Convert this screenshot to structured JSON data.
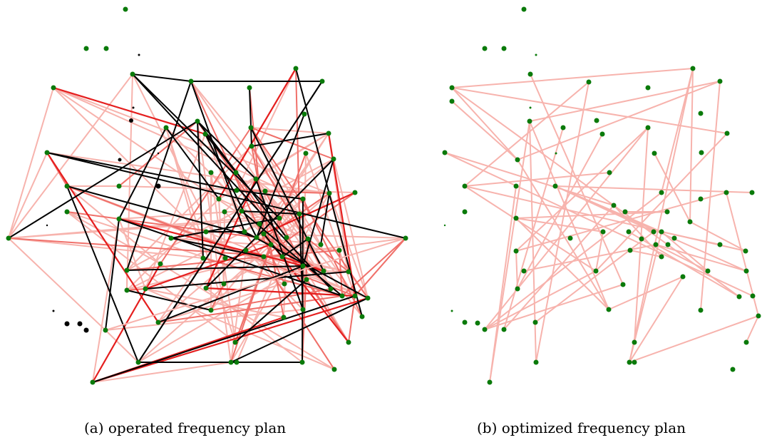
{
  "captions": {
    "left": "(a) operated frequency plan",
    "right": "(b) optimized frequency plan"
  },
  "colors": {
    "node": "#0a7a0a",
    "edge_light": "#f7b3ad",
    "edge_mid": "#f0706a",
    "edge_strong": "#e51f1f",
    "edge_black": "#000000"
  },
  "graph_a": {
    "description_note": "",
    "edge_counts": {
      "black": 48,
      "strong": 14,
      "mid": 40,
      "light": 110
    }
  },
  "graph_b": {
    "edge_counts": {
      "light": 62
    }
  }
}
